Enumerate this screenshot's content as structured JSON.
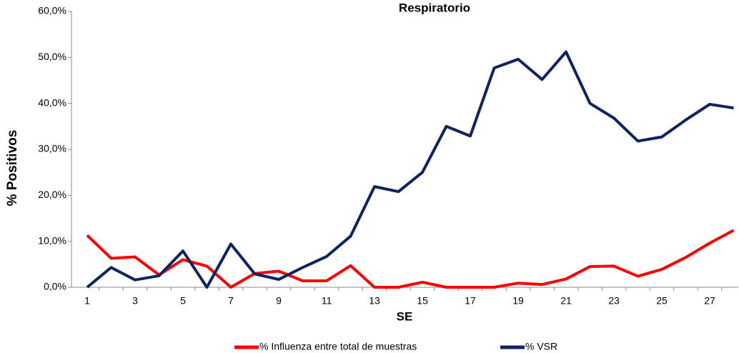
{
  "chart_data": {
    "type": "line",
    "title": "Respiratorio",
    "x_label": "SE",
    "y_label": "% Positivos",
    "categories": [
      "1",
      null,
      "3",
      null,
      "5",
      null,
      "7",
      null,
      "9",
      null,
      "11",
      null,
      "13",
      null,
      "15",
      null,
      "17",
      null,
      "19",
      null,
      "21",
      null,
      "23",
      null,
      "25",
      null,
      "27",
      null
    ],
    "series": [
      {
        "name": "% Influenza entre total de muestras",
        "color": "#ff0000",
        "values": [
          11.3,
          6.3,
          6.6,
          2.7,
          6.0,
          4.6,
          0,
          3.0,
          3.5,
          1.4,
          1.4,
          4.7,
          0,
          0,
          1.1,
          0,
          0,
          0,
          0.9,
          0.6,
          1.8,
          4.5,
          4.6,
          2.4,
          3.9,
          6.5,
          9.6,
          12.4
        ]
      },
      {
        "name": "% VSR",
        "color": "#0d2461",
        "values": [
          0,
          4.3,
          1.6,
          2.5,
          7.9,
          0,
          9.4,
          2.9,
          1.7,
          4.3,
          6.7,
          11.1,
          21.9,
          20.8,
          25.0,
          35.0,
          32.9,
          47.7,
          49.6,
          45.2,
          51.2,
          40.0,
          36.8,
          31.8,
          32.7,
          36.4,
          39.8,
          39.0
        ]
      }
    ],
    "ylim": [
      0,
      60
    ],
    "yticks": [
      {
        "value": 0,
        "label": "0,0%"
      },
      {
        "value": 10,
        "label": "10,0%"
      },
      {
        "value": 20,
        "label": "20,0%"
      },
      {
        "value": 30,
        "label": "30,0%"
      },
      {
        "value": 40,
        "label": "40,0%"
      },
      {
        "value": 50,
        "label": "50,0%"
      },
      {
        "value": 60,
        "label": "60,0%"
      }
    ],
    "legend": "bottom"
  }
}
